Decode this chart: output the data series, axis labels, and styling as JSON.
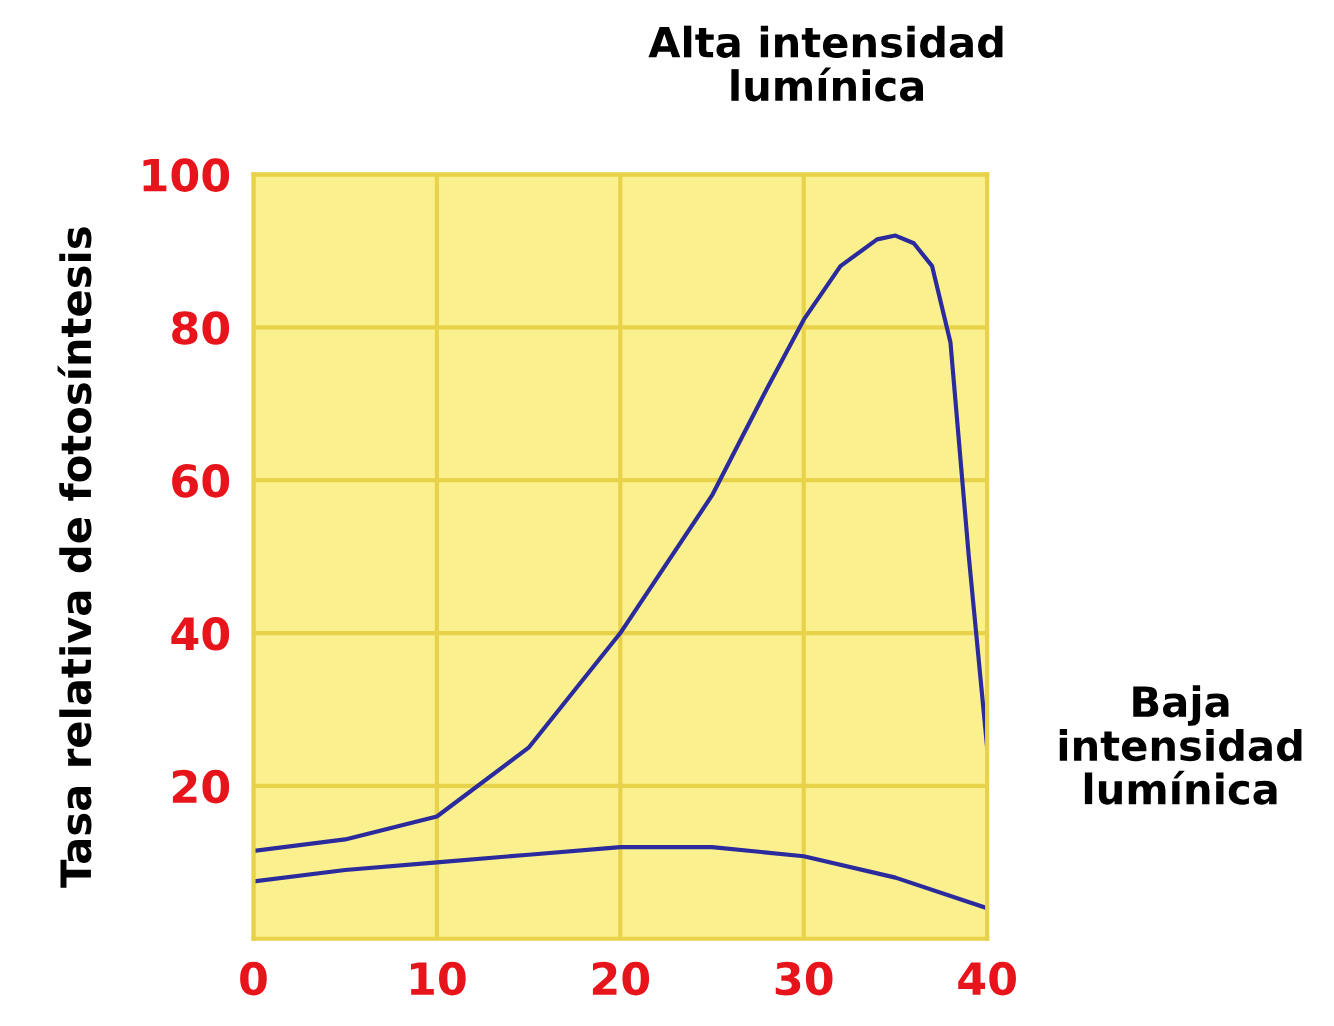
{
  "chart_data": {
    "type": "line",
    "ylabel": "Tasa relativa de fotosíntesis",
    "annotations": [
      "Alta intensidad\nlumínica",
      "Baja\nintensidad\nlumínica"
    ],
    "series": [
      {
        "color": "#2b2b9e",
        "x": [
          0,
          5,
          10,
          15,
          20,
          25,
          28,
          30,
          32,
          34,
          35,
          36,
          37,
          38,
          39,
          40
        ],
        "values": [
          11.5,
          13,
          16,
          25,
          40,
          58,
          72,
          81,
          88,
          91.5,
          92,
          91,
          88,
          78,
          50,
          25
        ]
      },
      {
        "color": "#2b2b9e",
        "x": [
          0,
          5,
          10,
          15,
          20,
          25,
          30,
          35,
          40
        ],
        "values": [
          7.5,
          9,
          10,
          11,
          12,
          12,
          10.8,
          8,
          4
        ]
      }
    ],
    "xlim": [
      0,
      40
    ],
    "ylim": [
      0,
      100
    ],
    "xticks": [
      0,
      10,
      20,
      30,
      40
    ],
    "yticks": [
      20,
      40,
      60,
      80,
      100
    ],
    "grid": true,
    "marker": "none",
    "line_style": "solid",
    "legend": false
  }
}
